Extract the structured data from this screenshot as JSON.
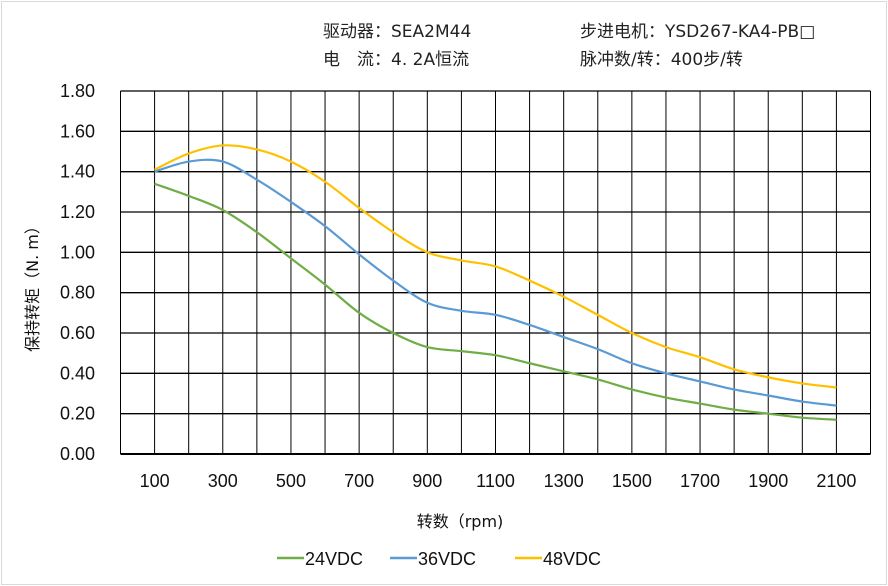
{
  "header": {
    "driver": "驱动器：SEA2M44",
    "motor": "步进电机：YSD267-KA4-PB□",
    "current": "电　流：4. 2A恒流",
    "pulses": "脉冲数/转：400步/转"
  },
  "chart_data": {
    "type": "line",
    "title": "",
    "xlabel": "转数（rpm)",
    "ylabel": "保持转矩（N. m）",
    "xlim": [
      0,
      2200
    ],
    "ylim": [
      0,
      1.8
    ],
    "x_ticks": [
      100,
      300,
      500,
      700,
      900,
      1100,
      1300,
      1500,
      1700,
      1900,
      2100
    ],
    "y_ticks": [
      "0.00",
      "0.20",
      "0.40",
      "0.60",
      "0.80",
      "1.00",
      "1.20",
      "1.40",
      "1.60",
      "1.80"
    ],
    "grid": true,
    "legend_position": "bottom",
    "x": [
      100,
      200,
      300,
      400,
      500,
      600,
      700,
      800,
      900,
      1000,
      1100,
      1200,
      1300,
      1400,
      1500,
      1600,
      1700,
      1800,
      1900,
      2000,
      2100
    ],
    "series": [
      {
        "name": "24VDC",
        "color": "#70ad47",
        "values": [
          1.34,
          1.28,
          1.21,
          1.1,
          0.97,
          0.84,
          0.7,
          0.6,
          0.53,
          0.51,
          0.49,
          0.45,
          0.41,
          0.37,
          0.32,
          0.28,
          0.25,
          0.22,
          0.2,
          0.18,
          0.17
        ]
      },
      {
        "name": "36VDC",
        "color": "#5b9bd5",
        "values": [
          1.4,
          1.45,
          1.45,
          1.36,
          1.25,
          1.13,
          0.99,
          0.86,
          0.75,
          0.71,
          0.69,
          0.64,
          0.58,
          0.52,
          0.45,
          0.4,
          0.36,
          0.32,
          0.29,
          0.26,
          0.24
        ]
      },
      {
        "name": "48VDC",
        "color": "#ffc000",
        "values": [
          1.41,
          1.49,
          1.53,
          1.51,
          1.45,
          1.35,
          1.22,
          1.1,
          1.0,
          0.96,
          0.93,
          0.86,
          0.78,
          0.69,
          0.6,
          0.53,
          0.48,
          0.42,
          0.38,
          0.35,
          0.33
        ]
      }
    ]
  }
}
